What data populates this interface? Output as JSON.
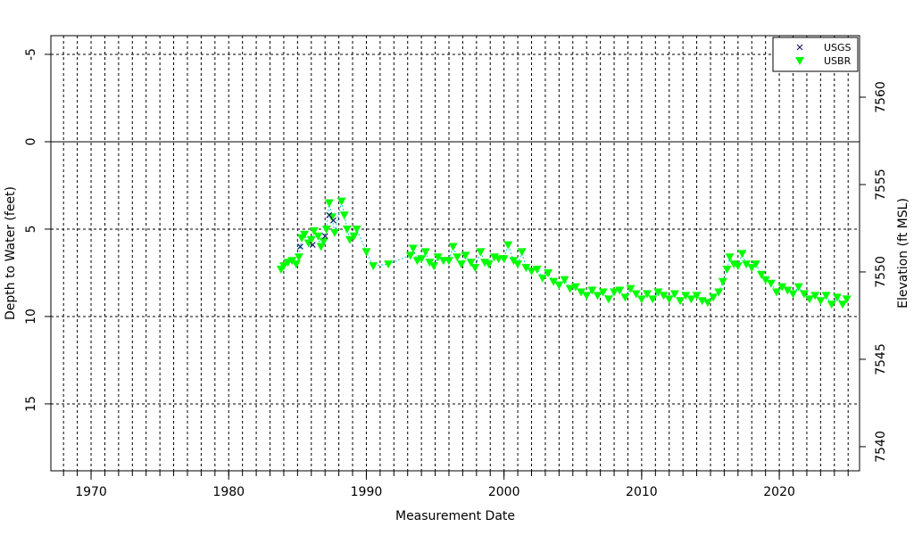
{
  "chart_data": {
    "type": "scatter",
    "xlabel": "Measurement Date",
    "ylabel": "Depth to Water (feet)",
    "y2label": "Elevation (ft MSL)",
    "xlim": [
      1967.08,
      2025.83
    ],
    "xticks": [
      1970,
      1980,
      1990,
      2000,
      2010,
      2020
    ],
    "xminor": [
      1968,
      1969,
      1970,
      1971,
      1972,
      1973,
      1974,
      1975,
      1976,
      1977,
      1978,
      1979,
      1980,
      1981,
      1982,
      1983,
      1984,
      1985,
      1986,
      1987,
      1988,
      1989,
      1990,
      1991,
      1992,
      1993,
      1994,
      1995,
      1996,
      1997,
      1998,
      1999,
      2000,
      2001,
      2002,
      2003,
      2004,
      2005,
      2006,
      2007,
      2008,
      2009,
      2010,
      2011,
      2012,
      2013,
      2014,
      2015,
      2016,
      2017,
      2018,
      2019,
      2020,
      2021,
      2022,
      2023,
      2024,
      2025
    ],
    "ylim": [
      -6.07,
      18.83
    ],
    "y_inverted": true,
    "yticks": [
      -5,
      0,
      5,
      10,
      15
    ],
    "y2lim": [
      7538.62,
      7563.52
    ],
    "y2ticks": [
      7540,
      7545,
      7550,
      7555,
      7560
    ],
    "grid": true,
    "zero_line": true,
    "legend": "top-right",
    "line_color": "#00cccc",
    "series": [
      {
        "name": "USGS",
        "color": "#1a1a6e",
        "marker": "x",
        "x": [
          1985.2,
          1986.1,
          1987.0,
          1987.3,
          1987.6
        ],
        "values": [
          6.0,
          5.9,
          5.4,
          4.2,
          4.5
        ]
      },
      {
        "name": "USBR",
        "color": "#00ff00",
        "marker": "triangle-down",
        "x": [
          1983.8,
          1984.0,
          1984.3,
          1984.6,
          1984.9,
          1985.1,
          1985.3,
          1985.5,
          1985.8,
          1986.0,
          1986.2,
          1986.5,
          1986.7,
          1986.9,
          1987.1,
          1987.3,
          1987.5,
          1987.7,
          1988.2,
          1988.4,
          1988.6,
          1988.8,
          1989.1,
          1989.3,
          1990.0,
          1990.5,
          1991.6,
          1993.2,
          1993.4,
          1993.7,
          1994.0,
          1994.3,
          1994.6,
          1994.9,
          1995.2,
          1995.6,
          1996.0,
          1996.3,
          1996.6,
          1996.9,
          1997.2,
          1997.6,
          1997.9,
          1998.3,
          1998.6,
          1998.9,
          1999.3,
          1999.6,
          2000.0,
          2000.3,
          2000.7,
          2001.0,
          2001.3,
          2001.6,
          2002.0,
          2002.4,
          2002.8,
          2003.2,
          2003.6,
          2004.0,
          2004.4,
          2004.8,
          2005.2,
          2005.6,
          2006.0,
          2006.4,
          2006.8,
          2007.2,
          2007.6,
          2008.0,
          2008.4,
          2008.8,
          2009.2,
          2009.6,
          2010.0,
          2010.4,
          2010.8,
          2011.2,
          2011.6,
          2012.0,
          2012.4,
          2012.8,
          2013.2,
          2013.6,
          2014.0,
          2014.4,
          2014.8,
          2015.2,
          2015.6,
          2015.9,
          2016.2,
          2016.4,
          2016.7,
          2017.0,
          2017.3,
          2017.6,
          2018.0,
          2018.3,
          2018.7,
          2019.0,
          2019.4,
          2019.8,
          2020.2,
          2020.6,
          2021.0,
          2021.4,
          2021.8,
          2022.2,
          2022.6,
          2023.0,
          2023.4,
          2023.8,
          2024.2,
          2024.6,
          2024.9
        ],
        "values": [
          7.3,
          7.1,
          6.9,
          6.8,
          7.0,
          6.6,
          5.5,
          5.3,
          5.8,
          5.6,
          5.1,
          5.4,
          6.0,
          5.7,
          5.0,
          3.5,
          4.3,
          5.2,
          3.4,
          4.2,
          5.0,
          5.6,
          5.4,
          5.0,
          6.3,
          7.1,
          7.0,
          6.5,
          6.1,
          6.8,
          6.7,
          6.3,
          6.9,
          7.1,
          6.6,
          6.8,
          6.8,
          6.0,
          6.6,
          7.0,
          6.5,
          6.9,
          7.2,
          6.3,
          6.9,
          7.0,
          6.6,
          6.7,
          6.7,
          5.9,
          6.8,
          7.0,
          6.3,
          7.2,
          7.4,
          7.3,
          7.8,
          7.5,
          8.0,
          8.2,
          7.9,
          8.4,
          8.3,
          8.6,
          8.8,
          8.5,
          8.8,
          8.6,
          9.0,
          8.6,
          8.5,
          8.9,
          8.4,
          8.7,
          9.0,
          8.7,
          9.0,
          8.6,
          8.8,
          9.0,
          8.7,
          9.1,
          8.8,
          9.0,
          8.8,
          9.1,
          9.2,
          8.9,
          8.6,
          8.0,
          7.3,
          6.6,
          7.0,
          7.1,
          6.4,
          7.0,
          7.2,
          7.0,
          7.6,
          7.9,
          8.1,
          8.6,
          8.3,
          8.5,
          8.7,
          8.3,
          8.7,
          9.0,
          8.8,
          9.1,
          8.8,
          9.3,
          8.9,
          9.3,
          9.0
        ]
      }
    ]
  }
}
